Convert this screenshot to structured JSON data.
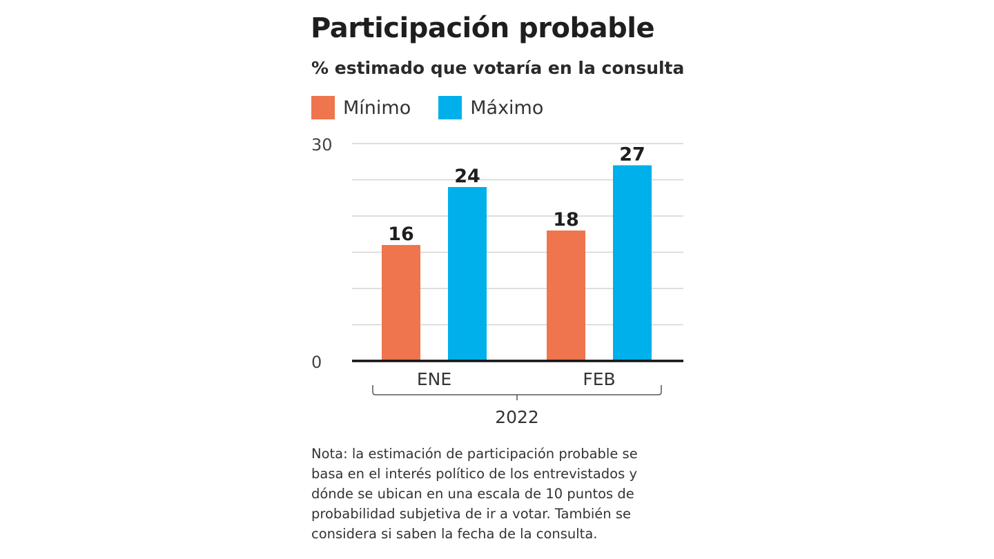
{
  "chart_data": {
    "type": "bar",
    "title": "Participación probable",
    "subtitle": "% estimado que votaría en la consulta",
    "categories": [
      "ENE",
      "FEB"
    ],
    "group_label": "2022",
    "series": [
      {
        "name": "Mínimo",
        "values": [
          16,
          18
        ],
        "color": "#EE754D"
      },
      {
        "name": "Máximo",
        "values": [
          24,
          27
        ],
        "color": "#00B0EA"
      }
    ],
    "ylim": [
      0,
      30
    ],
    "yticks_labeled": [
      "0",
      "30"
    ],
    "grid_step": 5,
    "grid": true,
    "legend_position": "top-left",
    "note": "Nota: la estimación de participación probable se basa en el interés político de los entrevistados y dónde se ubican en una escala de 10 puntos de probabilidad subjetiva de ir a votar. También se considera si saben la fecha de la consulta."
  }
}
